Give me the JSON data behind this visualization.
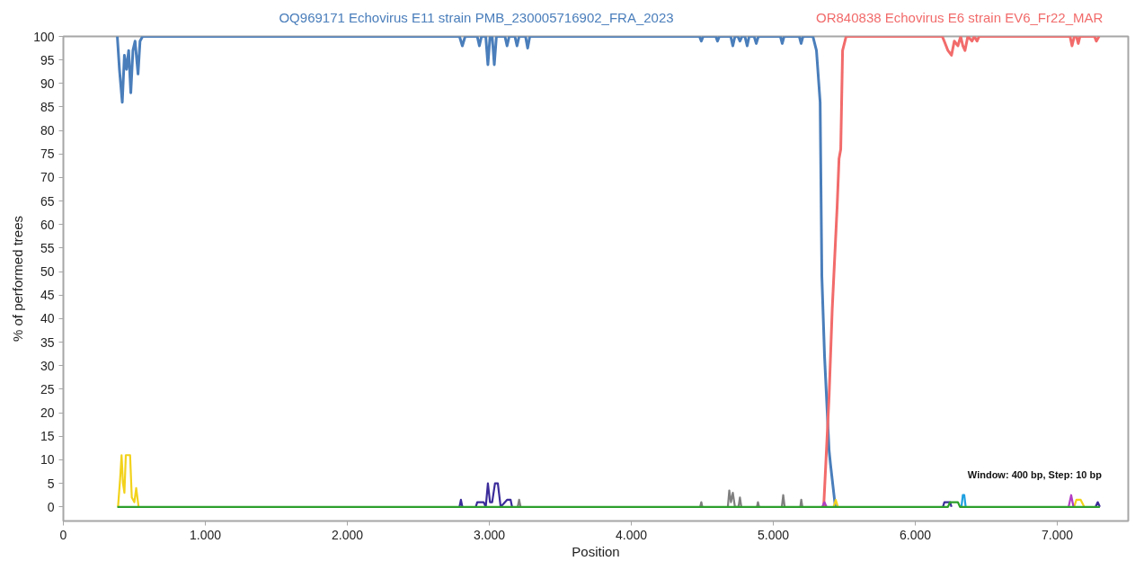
{
  "chart_data": {
    "type": "line",
    "xlabel": "Position",
    "ylabel": "% of performed trees",
    "annotations": [
      "Window: 400 bp, Step: 10 bp"
    ],
    "xlim": [
      0,
      7500
    ],
    "xticks": [
      0,
      {
        "value": 1000,
        "label": "1.000"
      },
      {
        "value": 2000,
        "label": "2.000"
      },
      {
        "value": 3000,
        "label": "3.000"
      },
      {
        "value": 4000,
        "label": "4.000"
      },
      {
        "value": 5000,
        "label": "5.000"
      },
      {
        "value": 6000,
        "label": "6.000"
      },
      {
        "value": 7000,
        "label": "7.000"
      }
    ],
    "ylim": [
      -3,
      100
    ],
    "yticks": [
      0,
      5,
      10,
      15,
      20,
      25,
      30,
      35,
      40,
      45,
      50,
      55,
      60,
      65,
      70,
      75,
      80,
      85,
      90,
      95,
      100
    ],
    "line_style": "solid",
    "series": [
      {
        "name": "OQ969171 Echovirus E11 strain PMB_230005716902_FRA_2023",
        "color": "#4a7ebb",
        "x": [
          380,
          395,
          415,
          430,
          445,
          460,
          475,
          490,
          505,
          526,
          540,
          558,
          2790,
          2810,
          2830,
          2915,
          2930,
          2945,
          2975,
          2990,
          3005,
          3020,
          3035,
          3050,
          3110,
          3125,
          3140,
          3180,
          3195,
          3210,
          3255,
          3270,
          3285,
          4480,
          4493,
          4506,
          4595,
          4607,
          4620,
          4700,
          4715,
          4730,
          4750,
          4765,
          4780,
          4800,
          4816,
          4830,
          4865,
          4880,
          4895,
          5050,
          5063,
          5076,
          5183,
          5196,
          5209,
          5279,
          5304,
          5330,
          5342,
          5361,
          5393,
          5403,
          5437
        ],
        "values": [
          100,
          93,
          86,
          96,
          93,
          97,
          88,
          97,
          99,
          92,
          99,
          100,
          100,
          98,
          100,
          100,
          98,
          100,
          100,
          94,
          100,
          100,
          94,
          100,
          100,
          98,
          100,
          100,
          98,
          100,
          100,
          97.5,
          100,
          100,
          99,
          100,
          100,
          99,
          100,
          100,
          98,
          100,
          100,
          99,
          100,
          100,
          98,
          100,
          100,
          98.5,
          100,
          100,
          98.5,
          100,
          100,
          98.5,
          100,
          100,
          97,
          86,
          49,
          32,
          12,
          9,
          0
        ]
      },
      {
        "name": "OR840838  Echovirus E6 strain EV6_Fr22_MAR",
        "color": "#f26b6b",
        "x": [
          5355,
          5393,
          5415,
          5450,
          5463,
          5475,
          5488,
          5513,
          6190,
          6204,
          6230,
          6255,
          6275,
          6300,
          6320,
          6335,
          6350,
          6370,
          6400,
          6415,
          6435,
          6450,
          7090,
          7104,
          7120,
          7135,
          7148,
          7160,
          7262,
          7275,
          7294
        ],
        "values": [
          0,
          23.5,
          42,
          64,
          74,
          76,
          97,
          100,
          100,
          99,
          97,
          96,
          99,
          98,
          100,
          98,
          97,
          100,
          99,
          100,
          99,
          100,
          100,
          98,
          100,
          100,
          98.5,
          100,
          100,
          99,
          100
        ]
      },
      {
        "color": "#f2d21c",
        "x": [
          385,
          400,
          410,
          420,
          430,
          440,
          470,
          482,
          500,
          513,
          530,
          531,
          5425,
          5440,
          5455,
          5456,
          7118,
          7135,
          7165,
          7190
        ],
        "values": [
          0,
          6,
          11,
          5,
          3,
          11,
          11,
          2,
          1,
          4,
          0,
          null,
          0,
          1.5,
          0,
          null,
          0,
          1.5,
          1.5,
          0
        ]
      },
      {
        "color": "#3b2c9a",
        "x": [
          2790,
          2800,
          2810,
          2811,
          2905,
          2915,
          2960,
          2975,
          2990,
          3005,
          3020,
          3040,
          3060,
          3080,
          3125,
          3150,
          3160,
          3161,
          6195,
          6205,
          6245,
          6255,
          6256,
          7270,
          7285,
          7300
        ],
        "values": [
          0,
          1.5,
          0,
          null,
          0,
          1,
          1,
          0,
          5,
          1,
          1,
          5,
          5,
          0,
          1.5,
          1.5,
          0,
          null,
          0,
          1,
          1,
          0,
          null,
          0,
          1,
          0
        ]
      },
      {
        "color": "#7f7f7f",
        "x": [
          3200,
          3210,
          3220,
          3221,
          4485,
          4493,
          4500,
          4501,
          4680,
          4690,
          4702,
          4715,
          4730,
          4755,
          4765,
          4775,
          4776,
          4885,
          4892,
          4900,
          4901,
          5060,
          5070,
          5080,
          5081,
          5190,
          5197,
          5205
        ],
        "values": [
          0,
          1.5,
          0,
          null,
          0,
          1,
          0,
          null,
          0,
          3.5,
          1,
          3,
          0,
          0,
          2,
          0,
          null,
          0,
          1,
          0,
          null,
          0,
          2.5,
          0,
          null,
          0,
          1.5,
          0
        ]
      },
      {
        "color": "#1fa0e0",
        "x": [
          6325,
          6335,
          6345,
          6355
        ],
        "values": [
          0,
          2.5,
          2.5,
          0
        ]
      },
      {
        "color": "#b23ec4",
        "x": [
          5345,
          5360,
          5375,
          5376,
          7080,
          7098,
          7114
        ],
        "values": [
          0,
          1,
          0,
          null,
          0,
          2.5,
          0
        ]
      },
      {
        "color": "#2ca02c",
        "x": [
          380,
          6230,
          6245,
          6300,
          6315,
          7300
        ],
        "values": [
          0,
          0,
          1,
          1,
          0,
          0
        ]
      }
    ]
  }
}
